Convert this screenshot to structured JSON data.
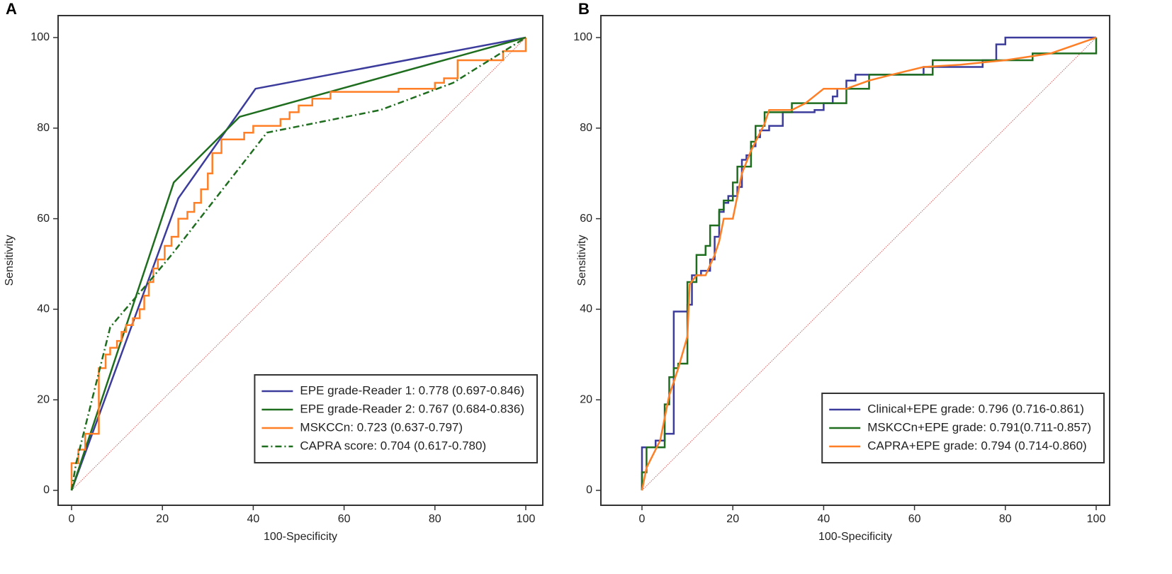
{
  "chart_data": [
    {
      "type": "line",
      "panel_label": "A",
      "xlabel": "100-Specificity",
      "ylabel": "Sensitivity",
      "xlim": [
        0,
        100
      ],
      "ylim": [
        0,
        100
      ],
      "xticks": [
        0,
        20,
        40,
        60,
        80,
        100
      ],
      "yticks": [
        0,
        20,
        40,
        60,
        80,
        100
      ],
      "legend": "lower right",
      "series": [
        {
          "name": "EPE grade-Reader 1: 0.778 (0.697-0.846)",
          "color": "#3c3c9c",
          "dash": "solid",
          "x": [
            0,
            23.5,
            40.5,
            100
          ],
          "values": [
            0,
            64.5,
            88.7,
            100
          ]
        },
        {
          "name": "EPE grade-Reader 2: 0.767 (0.684-0.836)",
          "color": "#1f6e1f",
          "dash": "solid",
          "x": [
            0,
            22.5,
            37,
            100
          ],
          "values": [
            0,
            68,
            82.5,
            100
          ]
        },
        {
          "name": "MSKCCn: 0.723 (0.637-0.797)",
          "color": "#ff7f27",
          "dash": "solid",
          "x": [
            0,
            0,
            1.5,
            1.5,
            3,
            3,
            6,
            6,
            7.5,
            7.5,
            8.5,
            8.5,
            10,
            10,
            11,
            11,
            12,
            12,
            13.5,
            13.5,
            15,
            15,
            16,
            16,
            17,
            17,
            18,
            18,
            19,
            19,
            20.5,
            20.5,
            22,
            22,
            23.5,
            23.5,
            25.5,
            25.5,
            27,
            27,
            28.5,
            28.5,
            30,
            30,
            31,
            31,
            33,
            33,
            38,
            38,
            40,
            40,
            46,
            46,
            48,
            48,
            50,
            50,
            53,
            53,
            57,
            57,
            72,
            72,
            80,
            80,
            82,
            82,
            85,
            85,
            95,
            95,
            100,
            100
          ],
          "values": [
            0,
            6,
            6,
            9,
            9,
            12.5,
            12.5,
            27,
            27,
            30,
            30,
            31.5,
            31.5,
            33,
            33,
            35,
            35,
            36.5,
            36.5,
            38,
            38,
            40,
            40,
            43,
            43,
            46,
            46,
            49,
            49,
            51,
            51,
            54,
            54,
            56,
            56,
            60,
            60,
            61.5,
            61.5,
            63.5,
            63.5,
            66.5,
            66.5,
            70,
            70,
            74.5,
            74.5,
            77.5,
            77.5,
            79,
            79,
            80.5,
            80.5,
            82,
            82,
            83.5,
            83.5,
            85,
            85,
            86.5,
            86.5,
            88,
            88,
            88.7,
            88.7,
            90,
            90,
            91,
            91,
            95,
            95,
            97,
            97,
            100
          ]
        },
        {
          "name": "CAPRA score: 0.704 (0.617-0.780)",
          "color": "#1f6e1f",
          "dash": "dashdot",
          "x": [
            0,
            1,
            8.5,
            11,
            17,
            22,
            43,
            68,
            84,
            100
          ],
          "values": [
            0,
            6,
            36,
            39,
            46,
            52,
            79,
            84,
            90,
            100
          ]
        }
      ]
    },
    {
      "type": "line",
      "panel_label": "B",
      "xlabel": "100-Specificity",
      "ylabel": "Sensitivity",
      "xlim": [
        0,
        100
      ],
      "ylim": [
        0,
        100
      ],
      "xticks": [
        0,
        20,
        40,
        60,
        80,
        100
      ],
      "yticks": [
        0,
        20,
        40,
        60,
        80,
        100
      ],
      "legend": "lower right",
      "series": [
        {
          "name": "Clinical+EPE grade: 0.796 (0.716-0.861)",
          "color": "#3c3c9c",
          "dash": "solid",
          "x": [
            0,
            0,
            3,
            3,
            5,
            5,
            7,
            7,
            10,
            10,
            11,
            11,
            13,
            13,
            15,
            15,
            16,
            16,
            17,
            17,
            18,
            18,
            19,
            19,
            21,
            21,
            22,
            22,
            23,
            23,
            24,
            24,
            25,
            25,
            26,
            26,
            28,
            28,
            31,
            31,
            38,
            38,
            40,
            40,
            42,
            42,
            43,
            43,
            45,
            45,
            47,
            47,
            62,
            62,
            75,
            75,
            78,
            78,
            80,
            80,
            100
          ],
          "values": [
            0,
            9.5,
            9.5,
            11,
            11,
            12.5,
            12.5,
            39.5,
            39.5,
            41,
            41,
            47.5,
            47.5,
            48.5,
            48.5,
            51,
            51,
            56,
            56,
            61.5,
            61.5,
            63.5,
            63.5,
            65,
            65,
            67,
            67,
            73,
            73,
            74,
            74,
            76,
            76,
            78,
            78,
            79.5,
            79.5,
            80.5,
            80.5,
            83.5,
            83.5,
            84,
            84,
            85.5,
            85.5,
            87,
            87,
            88.7,
            88.7,
            90.5,
            90.5,
            91.8,
            91.8,
            93.5,
            93.5,
            95,
            95,
            98.5,
            98.5,
            100,
            100
          ]
        },
        {
          "name": "MSKCCn+EPE grade: 0.791(0.711-0.857)",
          "color": "#1f6e1f",
          "dash": "solid",
          "x": [
            0,
            0,
            1,
            1,
            5,
            5,
            6,
            6,
            7,
            7,
            8,
            8,
            10,
            10,
            12,
            12,
            14,
            14,
            15,
            15,
            17,
            17,
            18,
            18,
            20,
            20,
            21,
            21,
            24,
            24,
            25,
            25,
            27,
            27,
            33,
            33,
            45,
            45,
            50,
            50,
            64,
            64,
            86,
            86,
            100,
            100
          ],
          "values": [
            0,
            4,
            4,
            9.5,
            9.5,
            19,
            19,
            25,
            25,
            27,
            27,
            28,
            28,
            46,
            46,
            52,
            52,
            54,
            54,
            58.5,
            58.5,
            62,
            62,
            64,
            64,
            68,
            68,
            71.5,
            71.5,
            77,
            77,
            80.5,
            80.5,
            83.5,
            83.5,
            85.5,
            85.5,
            88.7,
            88.7,
            91.8,
            91.8,
            95,
            95,
            96.5,
            96.5,
            100
          ]
        },
        {
          "name": "CAPRA+EPE grade: 0.794 (0.714-0.860)",
          "color": "#ff7f27",
          "dash": "solid",
          "x": [
            0,
            1,
            4,
            6,
            8,
            10,
            10.5,
            12,
            14,
            16,
            17,
            18,
            20,
            22,
            24,
            27,
            28,
            33,
            36,
            40,
            45,
            50,
            55,
            62,
            70,
            80,
            90,
            100
          ],
          "values": [
            0,
            5,
            11,
            21,
            27,
            34,
            45.5,
            47.5,
            47.5,
            52,
            55,
            60,
            60,
            70,
            75,
            81,
            84,
            84,
            85.5,
            88.7,
            88.7,
            90.5,
            91.8,
            93.5,
            94,
            95,
            96.5,
            100
          ]
        }
      ]
    }
  ]
}
